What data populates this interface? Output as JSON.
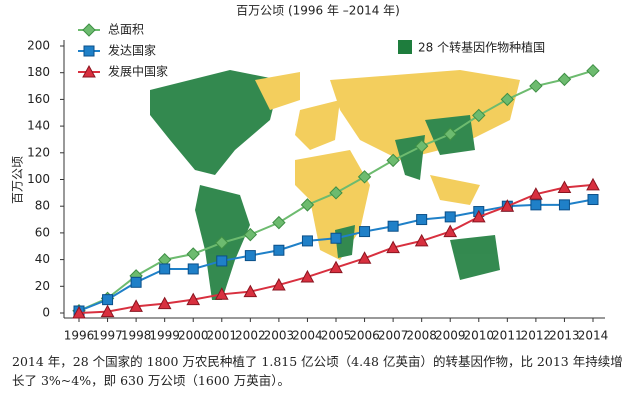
{
  "chart_data": {
    "type": "line",
    "title": "百万公顷 (1996 年 –2014 年)",
    "y_label": "百万公顷",
    "categories": [
      "1996",
      "1997",
      "1998",
      "1999",
      "2000",
      "2001",
      "2002",
      "2003",
      "2004",
      "2005",
      "2006",
      "2007",
      "2008",
      "2009",
      "2010",
      "2011",
      "2012",
      "2013",
      "2014"
    ],
    "series": [
      {
        "name": "总面积",
        "color": "#6dbb6f",
        "marker": "diamond",
        "values": [
          1.7,
          11,
          27.8,
          39.9,
          44.2,
          52.6,
          58.7,
          67.7,
          81,
          90,
          102,
          114.3,
          125,
          134,
          148,
          160,
          170,
          175,
          181.5
        ]
      },
      {
        "name": "发达国家",
        "color": "#1f80c8",
        "marker": "square",
        "values": [
          1.5,
          10,
          23,
          33,
          33,
          39,
          43,
          47,
          54,
          56,
          61,
          65,
          70,
          72,
          76,
          80,
          81,
          81,
          85
        ]
      },
      {
        "name": "发展中国家",
        "color": "#d8303f",
        "marker": "triangle",
        "values": [
          0,
          1,
          5,
          7,
          10,
          14,
          16,
          21,
          27,
          34,
          41,
          49,
          54,
          61,
          72,
          80,
          89,
          94,
          96
        ]
      }
    ],
    "ylim": [
      0,
      200
    ],
    "yticks": [
      0,
      20,
      40,
      60,
      80,
      100,
      120,
      140,
      160,
      180,
      200
    ],
    "legend": "top-left",
    "map_legend": {
      "label": "28 个转基因作物种植国",
      "color": "#1e7d3d"
    },
    "caption": "2014 年，28 个国家的 1800 万农民种植了 1.815 亿公顷（4.48 亿英亩）的转基因作物，比 2013 年持续增长了 3%~4%，即 630 万公顷（1600 万英亩）。"
  }
}
